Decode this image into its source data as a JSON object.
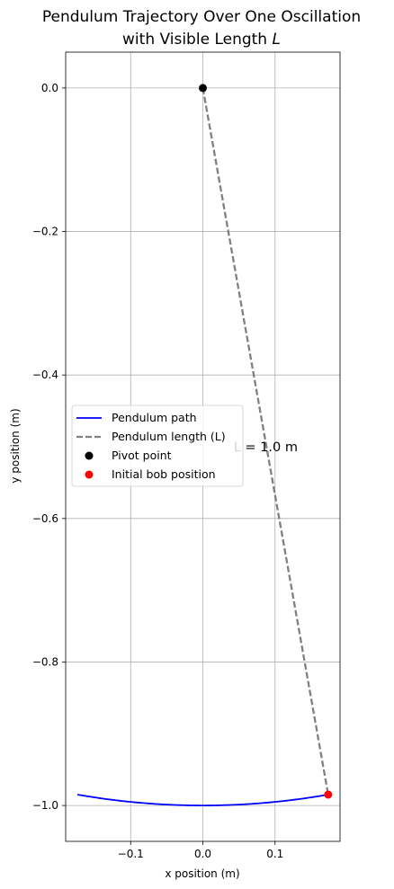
{
  "chart_data": {
    "type": "line",
    "title_line1": "Pendulum Trajectory Over One Oscillation",
    "title_line2_prefix": "with Visible Length ",
    "title_line2_symbol": "L",
    "xlabel": "x position (m)",
    "ylabel": "y position (m)",
    "xlim": [
      -0.19,
      0.19
    ],
    "ylim": [
      -1.05,
      0.05
    ],
    "xticks": [
      -0.1,
      0.0,
      0.1
    ],
    "xtick_labels": [
      "−0.1",
      "0.0",
      "0.1"
    ],
    "yticks": [
      0.0,
      -0.2,
      -0.4,
      -0.6,
      -0.8,
      -1.0
    ],
    "ytick_labels": [
      "0.0",
      "−0.2",
      "−0.4",
      "−0.6",
      "−0.8",
      "−1.0"
    ],
    "grid": true,
    "pendulum_length": 1.0,
    "max_angle_rad": 0.1745,
    "annotation": {
      "text": "L = 1.0 m",
      "x": 0.087,
      "y": -0.5
    },
    "series": [
      {
        "name": "Pendulum path",
        "color": "#0000ff",
        "style": "solid"
      },
      {
        "name": "Pendulum length (L)",
        "color": "#808080",
        "style": "dashed",
        "x": [
          0.0,
          0.1736
        ],
        "y": [
          0.0,
          -0.9848
        ]
      }
    ],
    "points": [
      {
        "name": "Pivot point",
        "color": "#000000",
        "x": 0.0,
        "y": 0.0
      },
      {
        "name": "Initial bob position",
        "color": "#ff0000",
        "x": 0.1736,
        "y": -0.9848
      }
    ],
    "legend_placement": "center-left"
  }
}
